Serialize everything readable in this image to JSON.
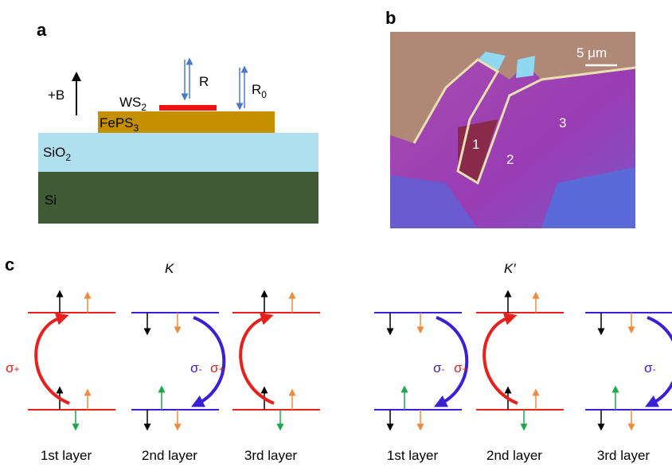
{
  "panel_a": {
    "label": "a",
    "field_label": "+B",
    "reflection": "R",
    "reference": {
      "main": "R",
      "sub": "0"
    },
    "ws2": {
      "main": "WS",
      "sub": "2"
    },
    "feps3": {
      "main": "FePS",
      "sub": "3"
    },
    "sio2": {
      "main": "SiO",
      "sub": "2"
    },
    "si": "Si"
  },
  "panel_b": {
    "label": "b",
    "scale_bar": "5 μm",
    "regions": [
      "1",
      "2",
      "3"
    ]
  },
  "panel_c": {
    "label": "c",
    "valleys": [
      {
        "name": "K",
        "layers": [
          {
            "label": "1st layer",
            "transition": {
              "symbol": "σ",
              "sign": "+"
            }
          },
          {
            "label": "2nd layer",
            "transition": {
              "symbol": "σ",
              "sign": "-"
            }
          },
          {
            "label": "3rd layer",
            "transition": {
              "symbol": "σ",
              "sign": "+"
            }
          }
        ]
      },
      {
        "name": "K′",
        "layers": [
          {
            "label": "1st layer",
            "transition": {
              "symbol": "σ",
              "sign": "-"
            }
          },
          {
            "label": "2nd layer",
            "transition": {
              "symbol": "σ",
              "sign": "+"
            }
          },
          {
            "label": "3rd layer",
            "transition": {
              "symbol": "σ",
              "sign": "-"
            }
          }
        ]
      }
    ]
  }
}
